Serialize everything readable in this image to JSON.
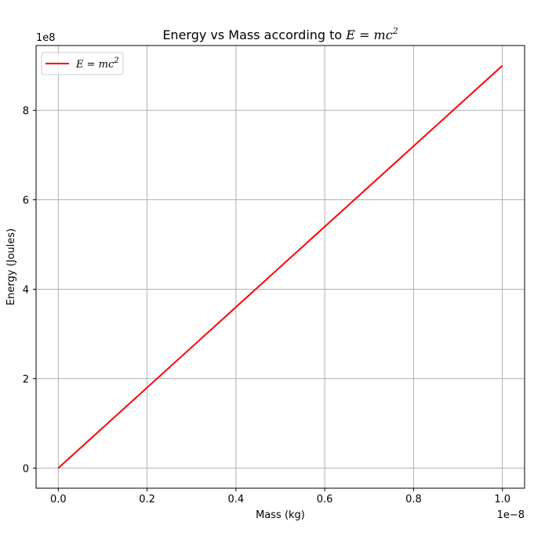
{
  "chart_data": {
    "type": "line",
    "title_prefix": "Energy vs Mass according to ",
    "title_math": "E = mc",
    "title_math_exp": "2",
    "xlabel": "Mass (kg)",
    "ylabel": "Energy (Joules)",
    "x_offset_label": "1e−8",
    "y_offset_label": "1e8",
    "x_scale": 1e-08,
    "y_scale": 100000000.0,
    "xlim": [
      -5e-10,
      1.05e-08
    ],
    "ylim": [
      -45000000.0,
      945000000.0
    ],
    "x_ticks": [
      0.0,
      2e-09,
      4e-09,
      6e-09,
      8e-09,
      1e-08
    ],
    "x_tick_labels": [
      "0.0",
      "0.2",
      "0.4",
      "0.6",
      "0.8",
      "1.0"
    ],
    "y_ticks": [
      0,
      200000000.0,
      400000000.0,
      600000000.0,
      800000000.0
    ],
    "y_tick_labels": [
      "0",
      "2",
      "4",
      "6",
      "8"
    ],
    "grid": true,
    "legend_location": "upper-left",
    "series": [
      {
        "name": "E = mc",
        "name_exp": "2",
        "color": "#ff0000",
        "x": [
          0.0,
          2e-09,
          4e-09,
          6e-09,
          8e-09,
          1e-08
        ],
        "y": [
          0.0,
          180000000.0,
          360000000.0,
          540000000.0,
          720000000.0,
          900000000.0
        ]
      }
    ]
  }
}
